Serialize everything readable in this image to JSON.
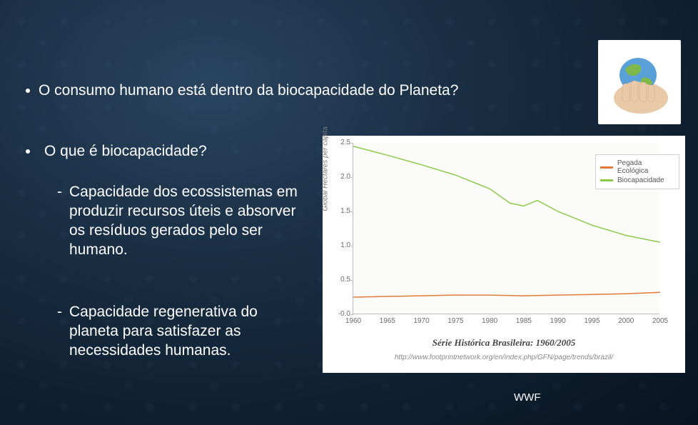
{
  "bullets": {
    "main_question": "O consumo humano está dentro da biocapacidade do Planeta?",
    "sub_question": "O que é biocapacidade?",
    "definition1": "Capacidade dos ecossistemas em produzir recursos úteis e absorver os resíduos gerados pelo ser humano.",
    "definition2": "Capacidade regenerativa do planeta para satisfazer as necessidades humanas."
  },
  "attribution": "WWF",
  "globe_illustration": {
    "bg": "#ffffff",
    "hand_color": "#e8c9a8",
    "globe_colors": {
      "ocean": "#5aa0d8",
      "land": "#7fb84a"
    }
  },
  "chart": {
    "type": "line",
    "title": "Série Histórica Brasileira: 1960/2005",
    "source_url": "http://www.footprintnetwork.org/en/index.php/GFN/page/trends/brazil/",
    "ylabel": "Global Hectares per capita",
    "background_color": "#ffffff",
    "plot_bg": "#fbfbfa",
    "axis_color": "#bcbcbc",
    "tick_label_color": "#6a6a6a",
    "tick_fontsize": 10,
    "title_fontsize": 13,
    "ylim": [
      -0.0,
      2.5
    ],
    "xlim": [
      1960,
      2005
    ],
    "yticks": [
      -0.0,
      0.5,
      1.0,
      1.5,
      2.0,
      2.5
    ],
    "xticks": [
      1960,
      1965,
      1970,
      1975,
      1980,
      1985,
      1990,
      1995,
      2000,
      2005
    ],
    "legend": {
      "position": "upper-right-outside",
      "border_color": "#d0d0d0",
      "items": [
        {
          "label": "Pegada Ecológica",
          "color": "#e07b3a"
        },
        {
          "label": "Biocapacidade",
          "color": "#8fc94a"
        }
      ]
    },
    "series": [
      {
        "name": "Pegada Ecológica",
        "color": "#e07b3a",
        "line_width": 1.5,
        "x": [
          1960,
          1965,
          1970,
          1975,
          1980,
          1985,
          1990,
          1995,
          2000,
          2005
        ],
        "y": [
          0.25,
          0.26,
          0.27,
          0.28,
          0.28,
          0.27,
          0.28,
          0.29,
          0.3,
          0.32
        ]
      },
      {
        "name": "Biocapacidade",
        "color": "#8fc94a",
        "line_width": 1.5,
        "x": [
          1960,
          1965,
          1970,
          1975,
          1980,
          1983,
          1985,
          1987,
          1990,
          1995,
          2000,
          2005
        ],
        "y": [
          2.45,
          2.32,
          2.18,
          2.03,
          1.83,
          1.62,
          1.58,
          1.66,
          1.5,
          1.3,
          1.15,
          1.05
        ]
      }
    ]
  }
}
